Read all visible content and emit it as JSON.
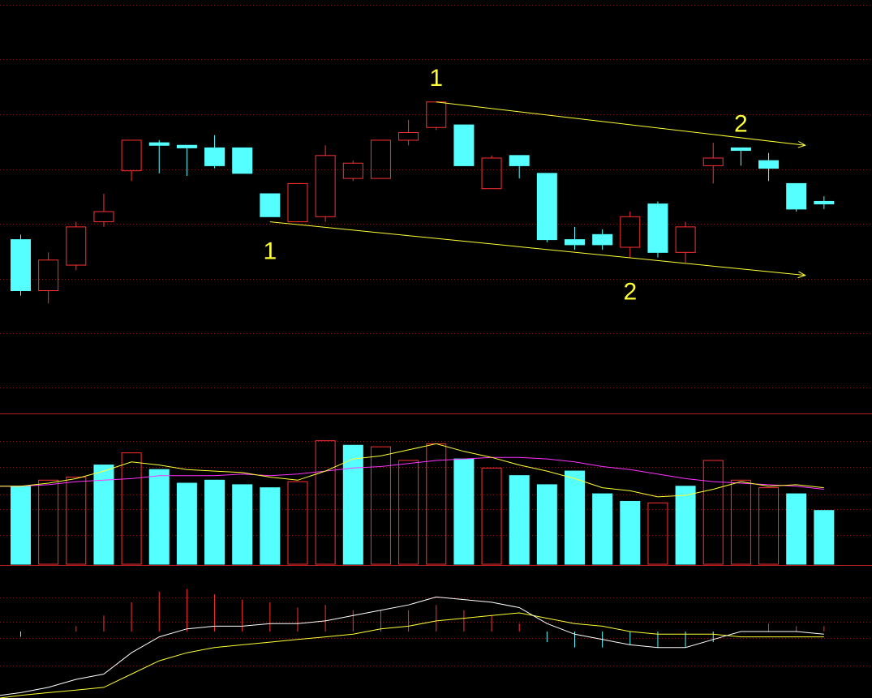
{
  "colors": {
    "background": "#000000",
    "up": "#ff3030",
    "down": "#55ffff",
    "grid": "#7a1a1a",
    "panel_separator": "#b02020",
    "trendline": "#ffff33",
    "ma_short": "#ffff33",
    "ma_long": "#ff33ff",
    "dif": "#ffffff",
    "dea": "#ffff33"
  },
  "chart_data": [
    {
      "type": "candlestick",
      "panel": "price",
      "candles": [
        {
          "open": 61.0,
          "high": 62.0,
          "low": 50.0,
          "close": 51.0
        },
        {
          "open": 51.0,
          "high": 58.5,
          "low": 48.5,
          "close": 57.0
        },
        {
          "open": 56.0,
          "high": 64.5,
          "low": 55.0,
          "close": 63.5
        },
        {
          "open": 64.5,
          "high": 70.0,
          "low": 63.5,
          "close": 66.5
        },
        {
          "open": 74.5,
          "high": 80.5,
          "low": 72.5,
          "close": 80.5
        },
        {
          "open": 80.0,
          "high": 80.5,
          "low": 74.0,
          "close": 79.5
        },
        {
          "open": 79.5,
          "high": 79.5,
          "low": 73.5,
          "close": 79.0
        },
        {
          "open": 79.0,
          "high": 81.5,
          "low": 75.0,
          "close": 75.5
        },
        {
          "open": 79.0,
          "high": 79.0,
          "low": 74.0,
          "close": 74.0
        },
        {
          "open": 70.0,
          "high": 70.0,
          "low": 65.5,
          "close": 65.5
        },
        {
          "open": 64.5,
          "high": 72.0,
          "low": 64.5,
          "close": 72.0
        },
        {
          "open": 65.5,
          "high": 79.5,
          "low": 64.5,
          "close": 77.5
        },
        {
          "open": 73.0,
          "high": 76.5,
          "low": 72.5,
          "close": 76.0
        },
        {
          "open": 73.0,
          "high": 80.5,
          "low": 73.0,
          "close": 80.5
        },
        {
          "open": 80.5,
          "high": 84.5,
          "low": 79.5,
          "close": 82.0
        },
        {
          "open": 83.0,
          "high": 88.0,
          "low": 82.5,
          "close": 88.0
        },
        {
          "open": 83.5,
          "high": 83.5,
          "low": 75.5,
          "close": 75.5
        },
        {
          "open": 71.0,
          "high": 77.5,
          "low": 71.0,
          "close": 77.0
        },
        {
          "open": 77.5,
          "high": 77.5,
          "low": 73.0,
          "close": 75.5
        },
        {
          "open": 74.0,
          "high": 74.0,
          "low": 60.5,
          "close": 61.0
        },
        {
          "open": 61.0,
          "high": 63.5,
          "low": 59.0,
          "close": 60.0
        },
        {
          "open": 62.0,
          "high": 63.0,
          "low": 59.0,
          "close": 60.0
        },
        {
          "open": 59.5,
          "high": 66.5,
          "low": 57.5,
          "close": 65.5
        },
        {
          "open": 68.0,
          "high": 68.5,
          "low": 57.5,
          "close": 58.5
        },
        {
          "open": 58.5,
          "high": 64.5,
          "low": 56.5,
          "close": 63.5
        },
        {
          "open": 75.5,
          "high": 80.0,
          "low": 72.0,
          "close": 77.0
        },
        {
          "open": 79.0,
          "high": 79.0,
          "low": 75.5,
          "close": 78.5
        },
        {
          "open": 76.5,
          "high": 78.0,
          "low": 72.5,
          "close": 75.0
        },
        {
          "open": 72.0,
          "high": 72.0,
          "low": 66.5,
          "close": 67.0
        },
        {
          "open": 68.5,
          "high": 69.5,
          "low": 67.0,
          "close": 68.0
        }
      ],
      "annotations": [
        {
          "text": "1",
          "anchor_candle": 15,
          "position": "above"
        },
        {
          "text": "1",
          "anchor_candle": 9,
          "position": "below"
        },
        {
          "text": "2",
          "anchor_candle": 26,
          "position": "above"
        },
        {
          "text": "2",
          "anchor_candle": 22,
          "position": "below"
        }
      ],
      "trendlines": [
        {
          "from_candle": 15,
          "from_value": 88.0,
          "to_candle": 28,
          "to_value": 79.5,
          "arrow": true
        },
        {
          "from_candle": 9,
          "from_value": 64.5,
          "to_candle": 28,
          "to_value": 54.0,
          "arrow": true
        }
      ],
      "ylim": [
        32,
        108
      ]
    },
    {
      "type": "bar",
      "panel": "volume",
      "values": [
        52,
        56,
        58,
        66,
        74,
        63,
        54,
        56,
        53,
        51,
        55,
        82,
        79,
        78,
        69,
        80,
        70,
        64,
        59,
        53,
        62,
        47,
        42,
        41,
        52,
        69,
        56,
        51,
        47,
        36
      ],
      "up": [
        false,
        true,
        true,
        false,
        true,
        false,
        false,
        false,
        false,
        false,
        true,
        true,
        false,
        true,
        true,
        true,
        false,
        true,
        false,
        false,
        false,
        false,
        false,
        true,
        false,
        true,
        true,
        true,
        false,
        false
      ],
      "ma_short": [
        52,
        54,
        57,
        62,
        68,
        66,
        63,
        62,
        61,
        58,
        56,
        62,
        70,
        72,
        76,
        80,
        75,
        71,
        66,
        62,
        57,
        51,
        49,
        45,
        46,
        50,
        55,
        52,
        53,
        51
      ],
      "ma_long": [
        52,
        53,
        55,
        56,
        57,
        59,
        59,
        59,
        60,
        59,
        60,
        62,
        64,
        65,
        67,
        69,
        70,
        71,
        71,
        70,
        68,
        65,
        63,
        60,
        57,
        55,
        54,
        53,
        52,
        50
      ],
      "ylim": [
        0,
        100
      ]
    },
    {
      "type": "bar",
      "panel": "macd",
      "histogram": [
        -0.2,
        0.0,
        0.2,
        0.6,
        1.1,
        1.5,
        1.6,
        1.4,
        1.2,
        1.1,
        0.9,
        1.0,
        0.8,
        0.8,
        0.8,
        1.0,
        0.8,
        0.6,
        0.3,
        -0.4,
        -0.6,
        -0.6,
        -0.5,
        -0.6,
        -0.6,
        -0.4,
        0.0,
        0.3,
        0.2,
        0.2
      ],
      "dif": [
        -2.3,
        -2.1,
        -1.8,
        -1.6,
        -0.8,
        -0.2,
        0.1,
        0.2,
        0.2,
        0.3,
        0.3,
        0.4,
        0.6,
        0.8,
        1.0,
        1.3,
        1.2,
        1.1,
        0.9,
        0.3,
        -0.1,
        -0.3,
        -0.5,
        -0.6,
        -0.6,
        -0.3,
        0.0,
        0.0,
        0.0,
        -0.1
      ],
      "dea": [
        -2.4,
        -2.3,
        -2.2,
        -2.1,
        -1.6,
        -1.1,
        -0.8,
        -0.6,
        -0.5,
        -0.4,
        -0.3,
        -0.2,
        -0.1,
        0.1,
        0.2,
        0.4,
        0.5,
        0.6,
        0.7,
        0.5,
        0.3,
        0.2,
        0.0,
        -0.1,
        -0.1,
        -0.1,
        -0.2,
        -0.2,
        -0.2,
        -0.2
      ],
      "ylim": [
        -2.5,
        2.5
      ]
    }
  ]
}
